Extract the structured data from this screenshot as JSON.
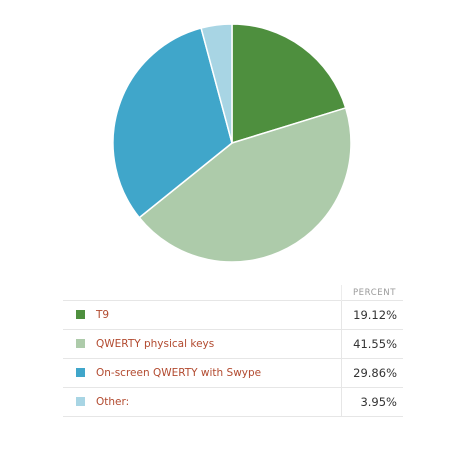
{
  "chart_data": {
    "type": "pie",
    "slices": [
      {
        "label": "T9",
        "value": 19.12,
        "display": "19.12%",
        "color": "#4e8f3e"
      },
      {
        "label": "QWERTY physical keys",
        "value": 41.55,
        "display": "41.55%",
        "color": "#adcbaa"
      },
      {
        "label": "On-screen QWERTY with Swype",
        "value": 29.86,
        "display": "29.86%",
        "color": "#40a6ca"
      },
      {
        "label": "Other:",
        "value": 3.95,
        "display": "3.95%",
        "color": "#a8d5e4"
      }
    ],
    "start_angle": "12 o'clock",
    "direction": "clockwise"
  },
  "table": {
    "header": "PERCENT"
  }
}
